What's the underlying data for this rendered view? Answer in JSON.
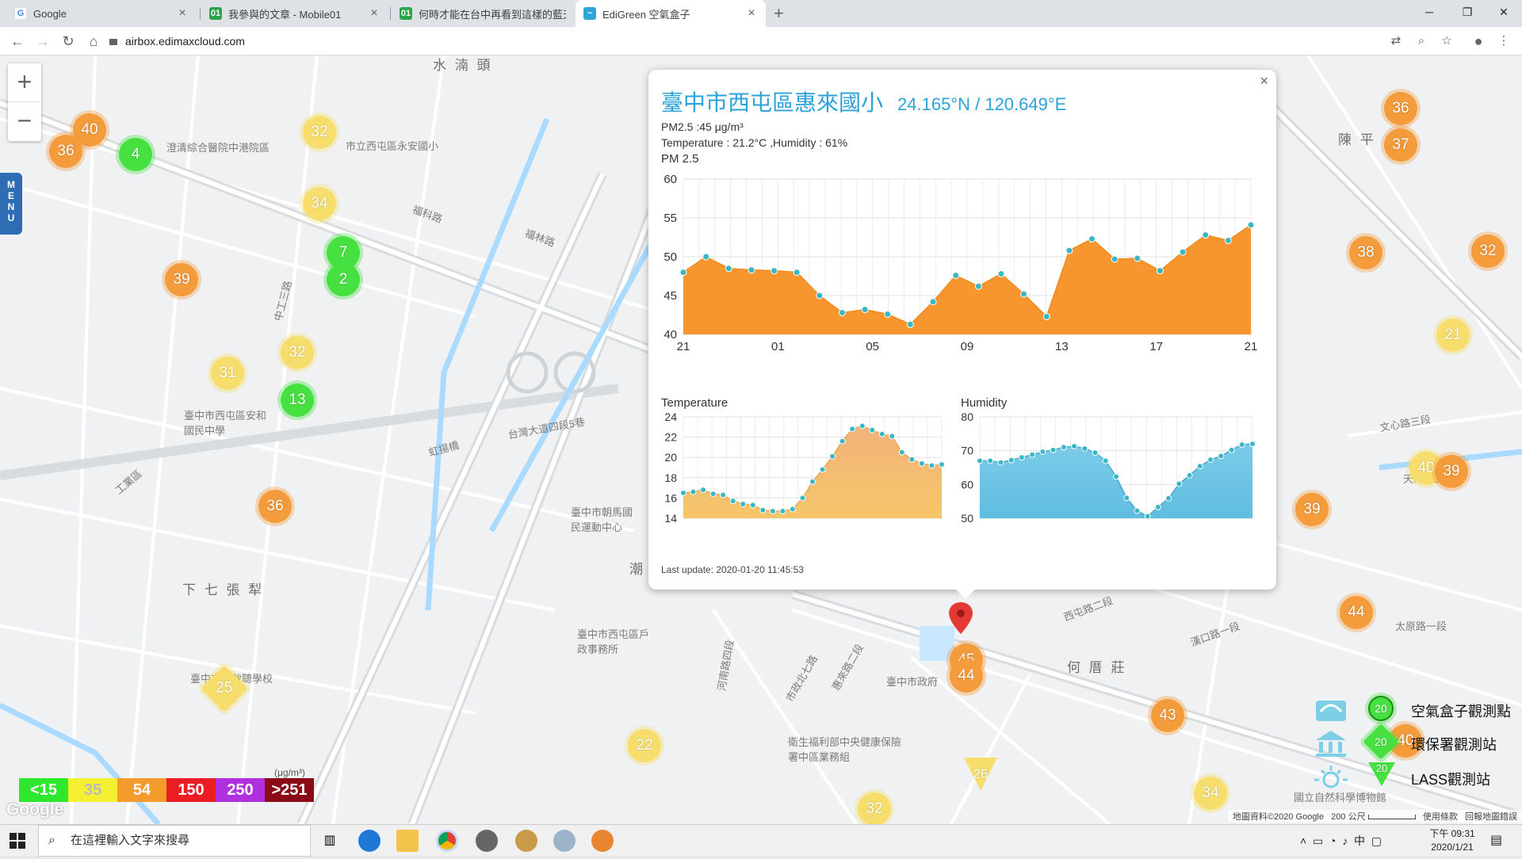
{
  "browser": {
    "tabs": [
      {
        "title": "Google",
        "icon": "google-icon"
      },
      {
        "title": "我參與的文章 - Mobile01",
        "icon": "mobile01-icon"
      },
      {
        "title": "何時才能在台中再看到這樣的藍天",
        "icon": "mobile01-icon"
      },
      {
        "title": "EdiGreen 空氣盒子",
        "icon": "edigreen-icon"
      }
    ],
    "url": "airbox.edimaxcloud.com"
  },
  "map": {
    "labels": [
      "水 湳 頭",
      "陳 平",
      "下 七 張 犁",
      "何 厝 莊",
      "澄清綜合醫院中港院區",
      "市立西屯區永安國小",
      "臺中市西屯區安和國民中學",
      "臺中市朝馬國民運動中心",
      "臺中市西屯區戶政事務所",
      "臺中市立啟聰學校",
      "臺中市政府",
      "衛生福利部中央健康保險署中區業務組",
      "國立自然科學博物館",
      "福科路",
      "福林路",
      "中工三路",
      "工業區",
      "台灣大道四段5巷",
      "虹揚橋",
      "西屯路二段",
      "河南路四段",
      "漢口路一段",
      "太原路一段",
      "文心路三段",
      "天津路三段",
      "市政北七路",
      "惠來路二段",
      "潮"
    ],
    "markers": [
      40,
      36,
      4,
      32,
      34,
      7,
      2,
      39,
      32,
      31,
      13,
      36,
      25,
      22,
      26,
      32,
      44,
      45,
      43,
      34,
      44,
      39,
      36,
      37,
      38,
      32,
      21,
      40,
      39,
      40
    ]
  },
  "popup": {
    "site": "臺中市西屯區惠來國小",
    "coords": "24.165°N / 120.649°E",
    "pm_line": "PM2.5 :45 μg/m³",
    "env_line": "Temperature : 21.2°C ,Humidity : 61%",
    "pm_title": "PM 2.5",
    "temp_title": "Temperature",
    "hum_title": "Humidity",
    "last_update": "Last update: 2020-01-20 11:45:53",
    "close": "×"
  },
  "chart_data": [
    {
      "type": "area",
      "title": "PM 2.5",
      "x_ticks": [
        "21",
        "01",
        "05",
        "09",
        "13",
        "17",
        "21"
      ],
      "ylim": [
        40,
        60
      ],
      "y_ticks": [
        40,
        45,
        50,
        55,
        60
      ],
      "values": [
        48,
        50,
        48.5,
        48.3,
        48.2,
        48,
        45,
        42.8,
        43.2,
        42.6,
        41.3,
        44.2,
        47.6,
        46.2,
        47.8,
        45.2,
        42.3,
        50.8,
        52.3,
        49.7,
        49.8,
        48.2,
        50.6,
        52.8,
        52.1,
        54.1
      ],
      "color": "#f7962f",
      "grid": true
    },
    {
      "type": "area",
      "title": "Temperature",
      "ylim": [
        14,
        24
      ],
      "y_ticks": [
        14,
        16,
        18,
        20,
        22,
        24
      ],
      "values": [
        16.5,
        16.6,
        16.8,
        16.4,
        16.3,
        15.7,
        15.4,
        15.3,
        14.8,
        14.7,
        14.7,
        14.9,
        16,
        17.6,
        18.8,
        20.1,
        21.6,
        22.8,
        23.1,
        22.7,
        22.3,
        22.1,
        20.5,
        19.8,
        19.4,
        19.2,
        19.3
      ],
      "color": "#f5c669",
      "grid": true
    },
    {
      "type": "area",
      "title": "Humidity",
      "ylim": [
        50,
        80
      ],
      "y_ticks": [
        50,
        60,
        70,
        80
      ],
      "values": [
        67,
        67,
        66.5,
        67.2,
        68,
        68.8,
        69.7,
        70.2,
        71,
        71.3,
        70.6,
        69.4,
        67,
        62.3,
        56,
        52.2,
        50.6,
        53.3,
        55.9,
        60.2,
        62.7,
        65.4,
        67.3,
        68.4,
        70.2,
        71.8,
        72
      ],
      "color": "#5fbde1",
      "grid": true
    }
  ],
  "legend": {
    "aqi": [
      {
        "label": "<15",
        "color": "#2ee82e"
      },
      {
        "label": "35",
        "color": "#f5f032"
      },
      {
        "label": "54",
        "color": "#f49b2e"
      },
      {
        "label": "150",
        "color": "#ea1c24"
      },
      {
        "label": "250",
        "color": "#b030e0"
      },
      {
        "label": ">251",
        "color": "#8a0b15"
      }
    ],
    "unit": "(μg/m³)",
    "stations": [
      {
        "label": "空氣盒子觀測點",
        "badge": "20"
      },
      {
        "label": "環保署觀測站",
        "badge": "20"
      },
      {
        "label": "LASS觀測站",
        "badge": "20"
      }
    ]
  },
  "attribution": {
    "text": "地圖資料©2020 Google",
    "scale": "200 公尺",
    "terms": "使用條款",
    "report": "回報地圖錯誤",
    "logo": "Google"
  },
  "menu": "MENU",
  "taskbar": {
    "search_placeholder": "在這裡輸入文字來搜尋",
    "time": "下午 09:31",
    "date": "2020/1/21",
    "ime": "中"
  }
}
